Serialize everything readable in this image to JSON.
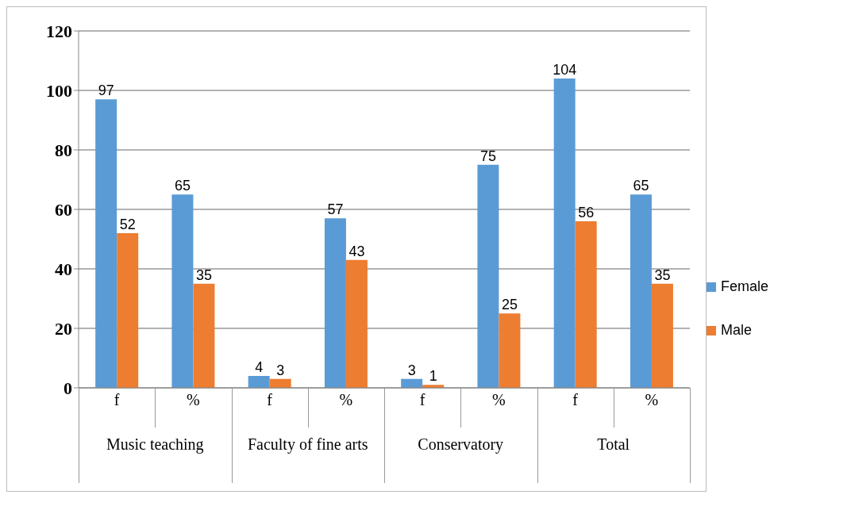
{
  "chart_data": {
    "type": "bar",
    "categories": [
      "f",
      "%",
      "f",
      "%",
      "f",
      "%",
      "f",
      "%"
    ],
    "series": [
      {
        "name": "Female",
        "color": "#5b9bd5",
        "values": [
          97,
          65,
          4,
          57,
          3,
          75,
          104,
          65
        ]
      },
      {
        "name": "Male",
        "color": "#ed7d31",
        "values": [
          52,
          35,
          3,
          43,
          1,
          25,
          56,
          35
        ]
      }
    ],
    "annotations": [
      "Music teaching",
      "Faculty of fine arts",
      "Conservatory",
      "Total"
    ],
    "ylim": [
      0,
      120
    ],
    "yticks": [
      0,
      20,
      40,
      60,
      80,
      100,
      120
    ],
    "grid": "y",
    "legend": "right",
    "data_labels": true
  }
}
